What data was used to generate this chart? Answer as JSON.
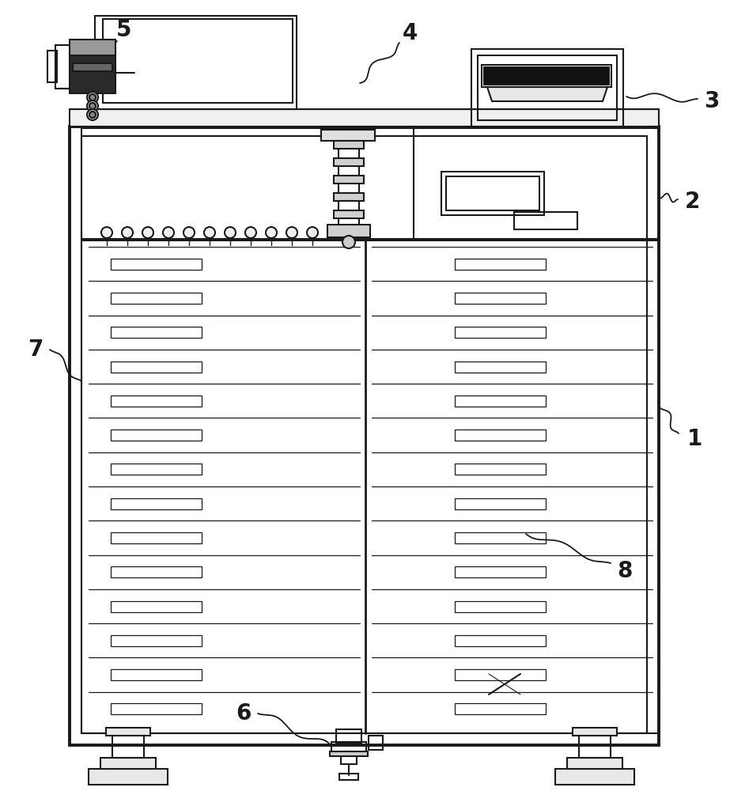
{
  "bg": "#ffffff",
  "lc": "#1a1a1a",
  "lw": 1.5,
  "tlw": 2.8,
  "label_size": 20
}
